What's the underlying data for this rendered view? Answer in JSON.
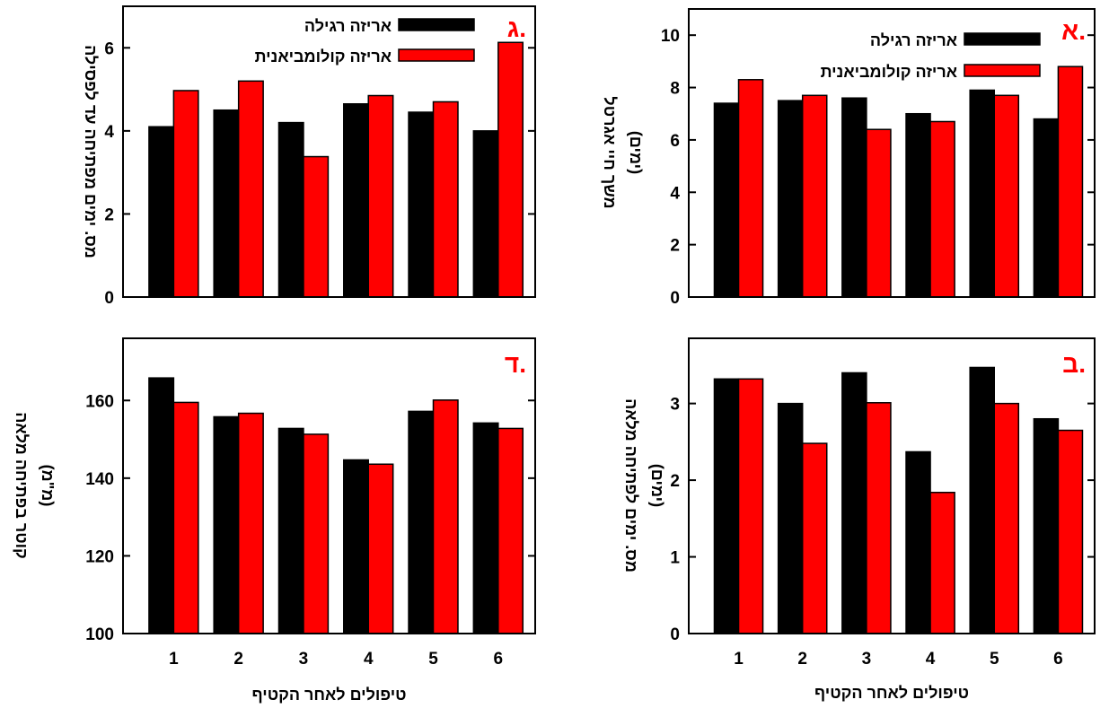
{
  "colors": {
    "series_regular": "#000000",
    "series_colombian": "#ff0000",
    "panel_letter": "#ff0000"
  },
  "chart_data": [
    {
      "id": "g",
      "type": "bar",
      "panel_label": "ג.",
      "categories": [
        "1",
        "2",
        "3",
        "4",
        "5",
        "6"
      ],
      "series": [
        {
          "name": "אריזה רגילה",
          "values": [
            4.1,
            4.5,
            4.2,
            4.65,
            4.45,
            4.0
          ]
        },
        {
          "name": "אריזה קולומביאנית",
          "values": [
            4.97,
            5.2,
            3.38,
            4.85,
            4.7,
            6.13
          ]
        }
      ],
      "ylim": [
        0,
        7
      ],
      "yticks": [
        "0",
        "2",
        "4",
        "6"
      ],
      "ylabel": "מס. ימים מפתיחה עד לפסילה",
      "xlabel": "",
      "legend": "top-right",
      "tick_labels_visible": false
    },
    {
      "id": "a",
      "type": "bar",
      "panel_label": "א.",
      "categories": [
        "1",
        "2",
        "3",
        "4",
        "5",
        "6"
      ],
      "series": [
        {
          "name": "אריזה רגילה",
          "values": [
            7.4,
            7.5,
            7.6,
            7.0,
            7.9,
            6.8
          ]
        },
        {
          "name": "אריזה קולומביאנית",
          "values": [
            8.3,
            7.7,
            6.4,
            6.7,
            7.7,
            8.8
          ]
        }
      ],
      "ylim": [
        0,
        11
      ],
      "yticks": [
        "0",
        "2",
        "4",
        "6",
        "8",
        "10"
      ],
      "ylabel": [
        "משך חיי אגרטל",
        "(ימים)"
      ],
      "xlabel": "",
      "legend": "top-right",
      "tick_labels_visible": false
    },
    {
      "id": "d",
      "type": "bar",
      "panel_label": "ד.",
      "categories": [
        "1",
        "2",
        "3",
        "4",
        "5",
        "6"
      ],
      "series": [
        {
          "name": "אריזה רגילה",
          "values": [
            165.8,
            155.8,
            152.8,
            144.7,
            157.2,
            154.2
          ]
        },
        {
          "name": "אריזה קולומביאנית",
          "values": [
            159.5,
            156.7,
            151.3,
            143.6,
            160.1,
            152.8
          ]
        }
      ],
      "ylim": [
        100,
        176
      ],
      "yticks": [
        "100",
        "120",
        "140",
        "160"
      ],
      "ylabel": [
        "קוטר בפתיחה מלאה",
        "(מ\"מ)"
      ],
      "xlabel": "טיפולים לאחר הקטיף",
      "tick_labels_visible": true
    },
    {
      "id": "b",
      "type": "bar",
      "panel_label": "ב.",
      "categories": [
        "1",
        "2",
        "3",
        "4",
        "5",
        "6"
      ],
      "series": [
        {
          "name": "אריזה רגילה",
          "values": [
            3.32,
            3.0,
            3.4,
            2.37,
            3.47,
            2.8
          ]
        },
        {
          "name": "אריזה קולומביאנית",
          "values": [
            3.32,
            2.48,
            3.01,
            1.84,
            3.0,
            2.65
          ]
        }
      ],
      "ylim": [
        0,
        3.85
      ],
      "yticks": [
        "0",
        "1",
        "2",
        "3"
      ],
      "ylabel": [
        "מס. ימים לפתיחה מלאה",
        "(ימים)"
      ],
      "xlabel": "טיפולים לאחר הקטיף",
      "tick_labels_visible": true
    }
  ]
}
